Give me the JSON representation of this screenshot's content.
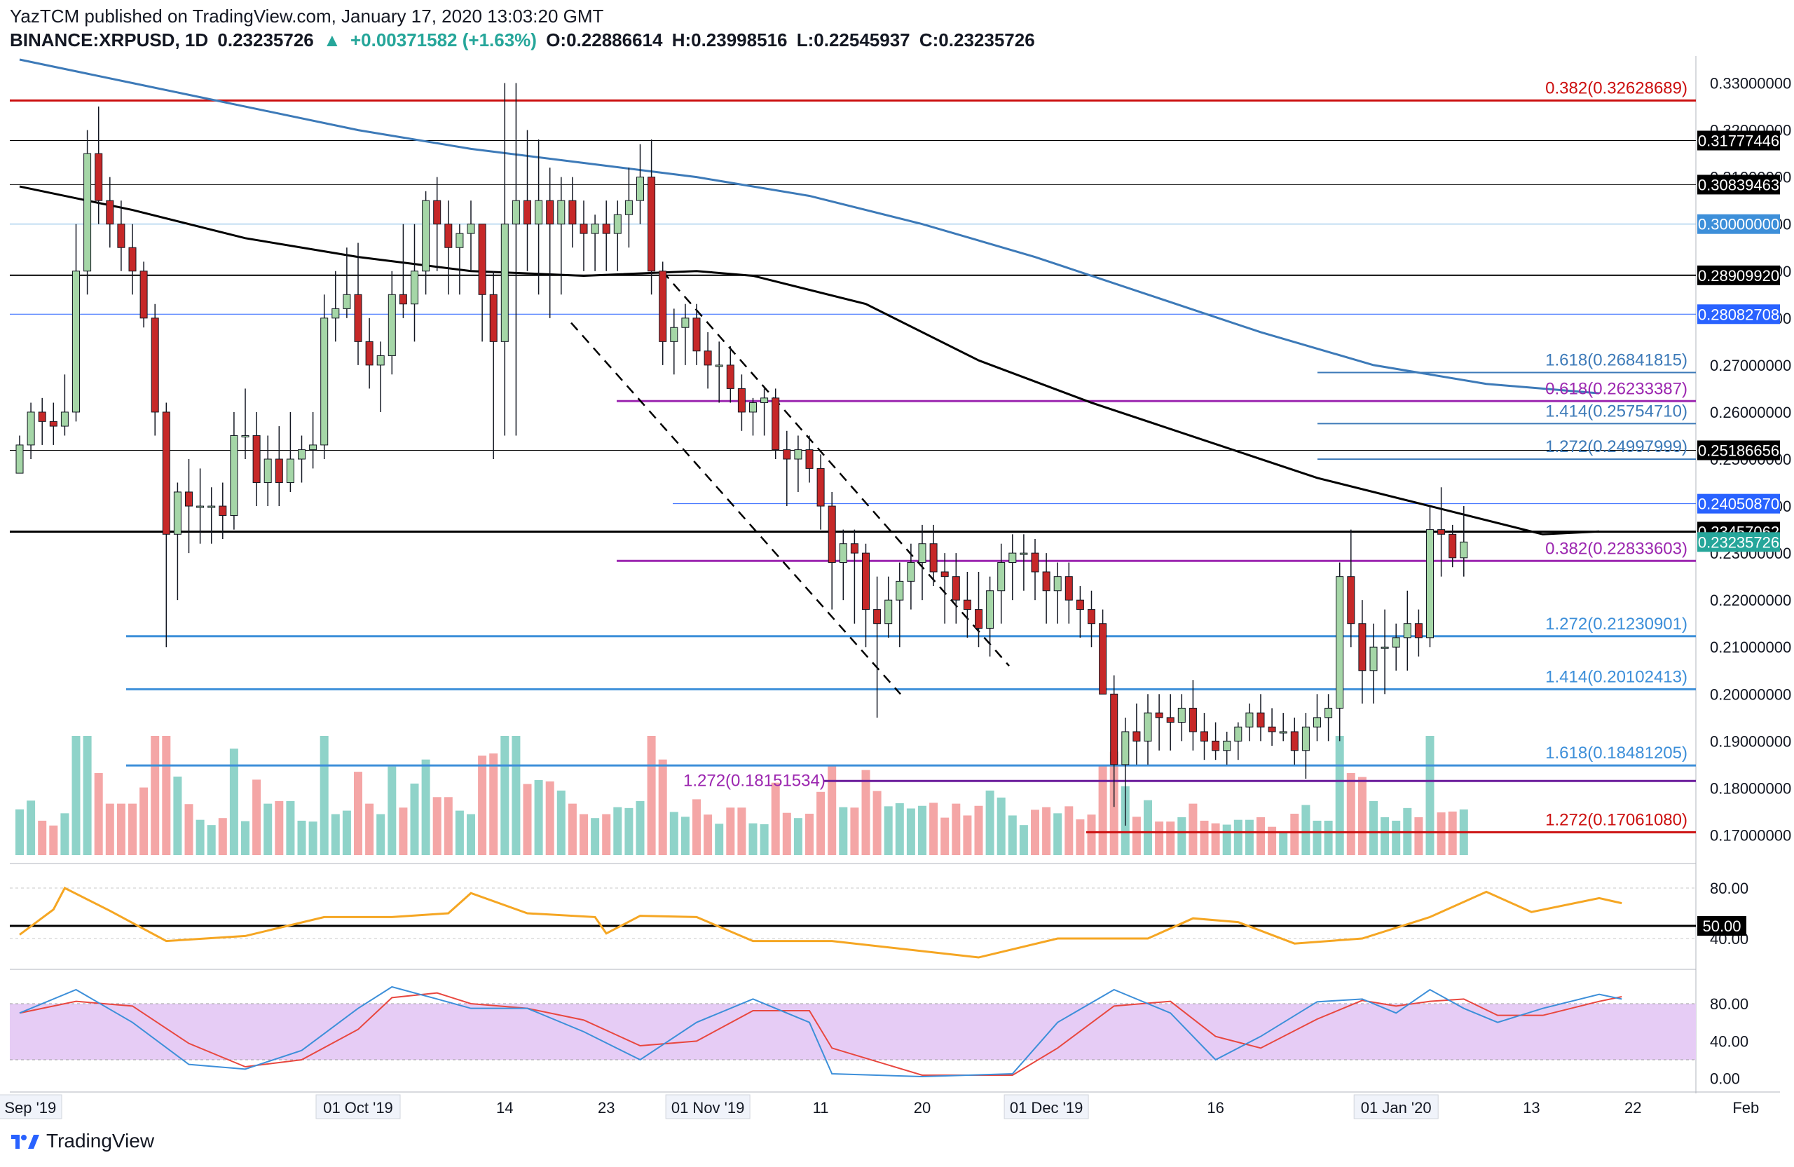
{
  "header": {
    "line1": "YazTCM published on TradingView.com, January 17, 2020 13:03:20 GMT",
    "symbol": "BINANCE:XRPUSD, 1D",
    "last": "0.23235726",
    "change": "+0.00371582 (+1.63%)",
    "o": "O:0.22886614",
    "h": "H:0.23998516",
    "l": "L:0.22545937",
    "c": "C:0.23235726"
  },
  "footer": {
    "brand": "TradingView"
  },
  "colors": {
    "up": "#26a69a",
    "down": "#ef5350",
    "upCandle": "#a5d6a7",
    "downCandle": "#c62828",
    "volUp": "#8fd3c9",
    "volDown": "#f4a6a6",
    "ma100": "#000000",
    "ma200": "#3d7ab8",
    "rsi": "#f5a623",
    "stochK": "#3d8fd9",
    "stochD": "#e8473f",
    "stochBand": "#e6ccf5",
    "red": "#cc1010",
    "purple": "#9c27b0",
    "blue": "#3d8fd9"
  },
  "chart_data": {
    "type": "candlestick",
    "title": "",
    "price_axis": {
      "ylim": [
        0.165,
        0.335
      ],
      "ticks": [
        "0.33000000",
        "0.32000000",
        "0.31000000",
        "0.30000000",
        "0.29000000",
        "0.28000000",
        "0.27000000",
        "0.26000000",
        "0.25000000",
        "0.24000000",
        "0.23000000",
        "0.22000000",
        "0.21000000",
        "0.20000000",
        "0.19000000",
        "0.18000000",
        "0.17000000"
      ]
    },
    "price_labels": [
      {
        "v": 0.31777446,
        "text": "0.31777446",
        "bg": "#000000",
        "fg": "#ffffff"
      },
      {
        "v": 0.30839463,
        "text": "0.30839463",
        "bg": "#000000",
        "fg": "#ffffff"
      },
      {
        "v": 0.3,
        "text": "0.30000000",
        "bg": "#3d8fd9",
        "fg": "#ffffff"
      },
      {
        "v": 0.2890992,
        "text": "0.28909920",
        "bg": "#000000",
        "fg": "#ffffff"
      },
      {
        "v": 0.28082708,
        "text": "0.28082708",
        "bg": "#2962ff",
        "fg": "#ffffff"
      },
      {
        "v": 0.25186656,
        "text": "0.25186656",
        "bg": "#000000",
        "fg": "#ffffff"
      },
      {
        "v": 0.2405087,
        "text": "0.24050870",
        "bg": "#2962ff",
        "fg": "#ffffff"
      },
      {
        "v": 0.23457062,
        "text": "0.23457062",
        "bg": "#000000",
        "fg": "#ffffff"
      },
      {
        "v": 0.23235726,
        "text": "0.23235726",
        "bg": "#26a69a",
        "fg": "#ffffff"
      }
    ],
    "levels": [
      {
        "v": 0.32628689,
        "color": "#cc1010",
        "w": 3,
        "x0": 0,
        "label": "0.382(0.32628689)",
        "lc": "#cc1010"
      },
      {
        "v": 0.31777446,
        "color": "#000000",
        "w": 1,
        "x0": 0,
        "label": "",
        "lc": ""
      },
      {
        "v": 0.30839463,
        "color": "#000000",
        "w": 1,
        "x0": 0,
        "label": "",
        "lc": ""
      },
      {
        "v": 0.3,
        "color": "#7fb8e6",
        "w": 1,
        "x0": 0,
        "label": "",
        "lc": ""
      },
      {
        "v": 0.2890992,
        "color": "#000000",
        "w": 2,
        "x0": 0,
        "label": "",
        "lc": ""
      },
      {
        "v": 0.28082708,
        "color": "#2962ff",
        "w": 1,
        "x0": 0,
        "label": "",
        "lc": ""
      },
      {
        "v": 0.26841815,
        "color": "#3d7ab8",
        "w": 2,
        "x0": 1880,
        "label": "1.618(0.26841815)",
        "lc": "#3d7ab8"
      },
      {
        "v": 0.26233387,
        "color": "#9c27b0",
        "w": 3,
        "x0": 880,
        "label": "0.618(0.26233387)",
        "lc": "#9c27b0"
      },
      {
        "v": 0.2575471,
        "color": "#3d7ab8",
        "w": 2,
        "x0": 1880,
        "label": "1.414(0.25754710)",
        "lc": "#3d7ab8"
      },
      {
        "v": 0.25186656,
        "color": "#000000",
        "w": 1,
        "x0": 0,
        "label": "",
        "lc": ""
      },
      {
        "v": 0.24997999,
        "color": "#3d7ab8",
        "w": 2,
        "x0": 1880,
        "label": "1.272(0.24997999)",
        "lc": "#3d7ab8"
      },
      {
        "v": 0.2405087,
        "color": "#2962ff",
        "w": 1,
        "x0": 960,
        "label": "",
        "lc": ""
      },
      {
        "v": 0.23457062,
        "color": "#000000",
        "w": 3,
        "x0": 0,
        "label": "",
        "lc": ""
      },
      {
        "v": 0.22833603,
        "color": "#9c27b0",
        "w": 3,
        "x0": 880,
        "label": "0.382(0.22833603)",
        "lc": "#9c27b0"
      },
      {
        "v": 0.21230901,
        "color": "#3d8fd9",
        "w": 3,
        "x0": 180,
        "label": "1.272(0.21230901)",
        "lc": "#3d8fd9"
      },
      {
        "v": 0.20102413,
        "color": "#3d8fd9",
        "w": 3,
        "x0": 180,
        "label": "1.414(0.20102413)",
        "lc": "#3d8fd9"
      },
      {
        "v": 0.18481205,
        "color": "#3d8fd9",
        "w": 3,
        "x0": 180,
        "label": "1.618(0.18481205)",
        "lc": "#3d8fd9"
      },
      {
        "v": 0.18151534,
        "color": "#6a1b9a",
        "w": 3,
        "x0": 1175,
        "label": "",
        "lc": ""
      },
      {
        "v": 0.1706108,
        "color": "#cc1010",
        "w": 3,
        "x0": 1550,
        "label": "1.272(0.17061080)",
        "lc": "#cc1010"
      }
    ],
    "extra_label": {
      "text": "1.272(0.18151534)",
      "v": 0.18151534,
      "color": "#9c27b0"
    },
    "x_axis_labels": [
      {
        "d": 0,
        "text": "01 Sep '19",
        "box": true
      },
      {
        "d": 30,
        "text": "01 Oct '19",
        "box": true
      },
      {
        "d": 43,
        "text": "14",
        "box": false
      },
      {
        "d": 52,
        "text": "23",
        "box": false
      },
      {
        "d": 61,
        "text": "01 Nov '19",
        "box": true
      },
      {
        "d": 71,
        "text": "11",
        "box": false
      },
      {
        "d": 80,
        "text": "20",
        "box": false
      },
      {
        "d": 91,
        "text": "01 Dec '19",
        "box": true
      },
      {
        "d": 106,
        "text": "16",
        "box": false
      },
      {
        "d": 122,
        "text": "01 Jan '20",
        "box": true
      },
      {
        "d": 134,
        "text": "13",
        "box": false
      },
      {
        "d": 143,
        "text": "22",
        "box": false
      },
      {
        "d": 153,
        "text": "Feb",
        "box": false
      }
    ],
    "candles": [
      [
        0.247,
        0.255,
        0.247,
        0.253
      ],
      [
        0.253,
        0.262,
        0.25,
        0.26
      ],
      [
        0.26,
        0.263,
        0.253,
        0.258
      ],
      [
        0.258,
        0.262,
        0.253,
        0.257
      ],
      [
        0.257,
        0.268,
        0.255,
        0.26
      ],
      [
        0.26,
        0.3,
        0.258,
        0.29
      ],
      [
        0.29,
        0.32,
        0.285,
        0.315
      ],
      [
        0.315,
        0.325,
        0.3,
        0.305
      ],
      [
        0.305,
        0.31,
        0.295,
        0.3
      ],
      [
        0.3,
        0.305,
        0.29,
        0.295
      ],
      [
        0.295,
        0.3,
        0.285,
        0.29
      ],
      [
        0.29,
        0.292,
        0.278,
        0.28
      ],
      [
        0.28,
        0.283,
        0.255,
        0.26
      ],
      [
        0.26,
        0.262,
        0.21,
        0.234
      ],
      [
        0.234,
        0.245,
        0.22,
        0.243
      ],
      [
        0.243,
        0.25,
        0.23,
        0.24
      ],
      [
        0.24,
        0.248,
        0.232,
        0.24
      ],
      [
        0.24,
        0.244,
        0.232,
        0.24
      ],
      [
        0.24,
        0.245,
        0.233,
        0.238
      ],
      [
        0.238,
        0.26,
        0.235,
        0.255
      ],
      [
        0.255,
        0.265,
        0.25,
        0.255
      ],
      [
        0.255,
        0.26,
        0.24,
        0.245
      ],
      [
        0.245,
        0.255,
        0.24,
        0.25
      ],
      [
        0.25,
        0.257,
        0.24,
        0.245
      ],
      [
        0.245,
        0.26,
        0.243,
        0.25
      ],
      [
        0.25,
        0.255,
        0.245,
        0.252
      ],
      [
        0.252,
        0.26,
        0.248,
        0.253
      ],
      [
        0.253,
        0.285,
        0.25,
        0.28
      ],
      [
        0.28,
        0.29,
        0.275,
        0.282
      ],
      [
        0.282,
        0.295,
        0.28,
        0.285
      ],
      [
        0.285,
        0.296,
        0.27,
        0.275
      ],
      [
        0.275,
        0.28,
        0.265,
        0.27
      ],
      [
        0.27,
        0.275,
        0.26,
        0.272
      ],
      [
        0.272,
        0.29,
        0.268,
        0.285
      ],
      [
        0.285,
        0.3,
        0.28,
        0.283
      ],
      [
        0.283,
        0.3,
        0.275,
        0.29
      ],
      [
        0.29,
        0.307,
        0.285,
        0.305
      ],
      [
        0.305,
        0.31,
        0.29,
        0.3
      ],
      [
        0.3,
        0.305,
        0.285,
        0.295
      ],
      [
        0.295,
        0.3,
        0.285,
        0.298
      ],
      [
        0.298,
        0.305,
        0.29,
        0.3
      ],
      [
        0.3,
        0.3,
        0.275,
        0.285
      ],
      [
        0.285,
        0.29,
        0.25,
        0.275
      ],
      [
        0.275,
        0.33,
        0.255,
        0.3
      ],
      [
        0.3,
        0.33,
        0.255,
        0.305
      ],
      [
        0.305,
        0.32,
        0.29,
        0.3
      ],
      [
        0.3,
        0.318,
        0.285,
        0.305
      ],
      [
        0.305,
        0.312,
        0.28,
        0.3
      ],
      [
        0.3,
        0.31,
        0.285,
        0.305
      ],
      [
        0.305,
        0.31,
        0.295,
        0.3
      ],
      [
        0.3,
        0.305,
        0.29,
        0.298
      ],
      [
        0.298,
        0.302,
        0.29,
        0.3
      ],
      [
        0.3,
        0.305,
        0.29,
        0.298
      ],
      [
        0.298,
        0.305,
        0.29,
        0.302
      ],
      [
        0.302,
        0.312,
        0.295,
        0.305
      ],
      [
        0.305,
        0.317,
        0.3,
        0.31
      ],
      [
        0.31,
        0.318,
        0.285,
        0.29
      ],
      [
        0.29,
        0.292,
        0.27,
        0.275
      ],
      [
        0.275,
        0.282,
        0.268,
        0.278
      ],
      [
        0.278,
        0.283,
        0.27,
        0.28
      ],
      [
        0.28,
        0.283,
        0.27,
        0.273
      ],
      [
        0.273,
        0.277,
        0.265,
        0.27
      ],
      [
        0.27,
        0.275,
        0.262,
        0.27
      ],
      [
        0.27,
        0.274,
        0.262,
        0.265
      ],
      [
        0.265,
        0.268,
        0.256,
        0.26
      ],
      [
        0.26,
        0.263,
        0.255,
        0.262
      ],
      [
        0.262,
        0.265,
        0.255,
        0.263
      ],
      [
        0.263,
        0.265,
        0.25,
        0.252
      ],
      [
        0.252,
        0.256,
        0.24,
        0.25
      ],
      [
        0.25,
        0.255,
        0.243,
        0.252
      ],
      [
        0.252,
        0.255,
        0.245,
        0.248
      ],
      [
        0.248,
        0.251,
        0.235,
        0.24
      ],
      [
        0.24,
        0.243,
        0.218,
        0.228
      ],
      [
        0.228,
        0.235,
        0.22,
        0.232
      ],
      [
        0.232,
        0.235,
        0.215,
        0.23
      ],
      [
        0.23,
        0.232,
        0.21,
        0.218
      ],
      [
        0.218,
        0.225,
        0.195,
        0.215
      ],
      [
        0.215,
        0.225,
        0.212,
        0.22
      ],
      [
        0.22,
        0.228,
        0.21,
        0.224
      ],
      [
        0.224,
        0.232,
        0.218,
        0.228
      ],
      [
        0.228,
        0.236,
        0.22,
        0.232
      ],
      [
        0.232,
        0.236,
        0.223,
        0.226
      ],
      [
        0.226,
        0.23,
        0.215,
        0.225
      ],
      [
        0.225,
        0.23,
        0.215,
        0.22
      ],
      [
        0.22,
        0.226,
        0.212,
        0.218
      ],
      [
        0.218,
        0.226,
        0.21,
        0.214
      ],
      [
        0.214,
        0.225,
        0.208,
        0.222
      ],
      [
        0.222,
        0.232,
        0.215,
        0.228
      ],
      [
        0.228,
        0.234,
        0.22,
        0.23
      ],
      [
        0.23,
        0.234,
        0.222,
        0.23
      ],
      [
        0.23,
        0.233,
        0.22,
        0.226
      ],
      [
        0.226,
        0.23,
        0.215,
        0.222
      ],
      [
        0.222,
        0.228,
        0.215,
        0.225
      ],
      [
        0.225,
        0.228,
        0.215,
        0.22
      ],
      [
        0.22,
        0.223,
        0.212,
        0.218
      ],
      [
        0.218,
        0.222,
        0.21,
        0.215
      ],
      [
        0.215,
        0.218,
        0.2,
        0.2
      ],
      [
        0.2,
        0.204,
        0.176,
        0.185
      ],
      [
        0.185,
        0.195,
        0.172,
        0.192
      ],
      [
        0.192,
        0.198,
        0.185,
        0.19
      ],
      [
        0.19,
        0.2,
        0.185,
        0.196
      ],
      [
        0.196,
        0.2,
        0.188,
        0.195
      ],
      [
        0.195,
        0.2,
        0.188,
        0.194
      ],
      [
        0.194,
        0.2,
        0.19,
        0.197
      ],
      [
        0.197,
        0.203,
        0.188,
        0.192
      ],
      [
        0.192,
        0.196,
        0.186,
        0.19
      ],
      [
        0.19,
        0.194,
        0.186,
        0.188
      ],
      [
        0.188,
        0.192,
        0.185,
        0.19
      ],
      [
        0.19,
        0.194,
        0.186,
        0.193
      ],
      [
        0.193,
        0.198,
        0.19,
        0.196
      ],
      [
        0.196,
        0.2,
        0.19,
        0.193
      ],
      [
        0.193,
        0.197,
        0.189,
        0.192
      ],
      [
        0.192,
        0.196,
        0.19,
        0.192
      ],
      [
        0.192,
        0.195,
        0.185,
        0.188
      ],
      [
        0.188,
        0.196,
        0.182,
        0.193
      ],
      [
        0.193,
        0.2,
        0.19,
        0.195
      ],
      [
        0.195,
        0.2,
        0.19,
        0.197
      ],
      [
        0.197,
        0.228,
        0.19,
        0.225
      ],
      [
        0.225,
        0.235,
        0.21,
        0.215
      ],
      [
        0.215,
        0.22,
        0.198,
        0.205
      ],
      [
        0.205,
        0.215,
        0.198,
        0.21
      ],
      [
        0.21,
        0.218,
        0.2,
        0.21
      ],
      [
        0.21,
        0.215,
        0.205,
        0.212
      ],
      [
        0.212,
        0.222,
        0.205,
        0.215
      ],
      [
        0.215,
        0.218,
        0.208,
        0.212
      ],
      [
        0.212,
        0.24,
        0.21,
        0.235
      ],
      [
        0.235,
        0.244,
        0.225,
        0.234
      ],
      [
        0.234,
        0.236,
        0.227,
        0.229
      ],
      [
        0.229,
        0.24,
        0.225,
        0.23235726
      ]
    ],
    "volume_max": 1,
    "rsi": {
      "ticks": [
        "80.00",
        "40.00"
      ],
      "level_label": "50.00",
      "ylim": [
        20,
        95
      ],
      "level": 50
    },
    "stoch": {
      "ticks": [
        "80.00",
        "40.00",
        "0.00"
      ],
      "ylim": [
        -10,
        110
      ],
      "band": [
        20,
        80
      ]
    }
  }
}
